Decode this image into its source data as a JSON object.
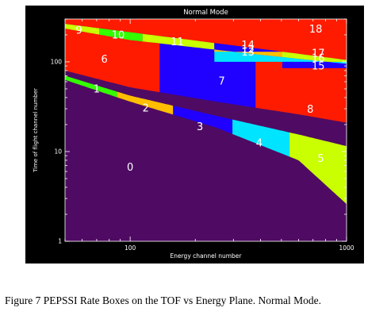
{
  "figure": {
    "caption": "Figure 7 PEPSSI Rate Boxes on the TOF vs Energy Plane.  Normal Mode."
  },
  "chart_data": {
    "type": "heatmap",
    "title": "Normal Mode",
    "xlabel": "Energy channel number",
    "ylabel": "Time of flight channel number",
    "x_scale": "log",
    "y_scale": "log",
    "xlim": [
      50,
      1000
    ],
    "ylim": [
      1,
      300
    ],
    "x_ticks": [
      {
        "value": 100,
        "label": "100"
      },
      {
        "value": 1000,
        "label": "1000"
      }
    ],
    "y_ticks": [
      {
        "value": 1,
        "label": "1"
      },
      {
        "value": 10,
        "label": "10"
      },
      {
        "value": 100,
        "label": "100"
      }
    ],
    "background_color": "#4f0b63",
    "boundaries": {
      "upper_band_bottom": [
        [
          50,
          265
        ],
        [
          1000,
          105
        ]
      ],
      "mid_band_top": [
        [
          50,
          235
        ],
        [
          100,
          175
        ],
        [
          400,
          120
        ],
        [
          1000,
          95
        ]
      ],
      "mid_band_bottom": [
        [
          50,
          80
        ],
        [
          100,
          52
        ],
        [
          250,
          36
        ],
        [
          600,
          26
        ],
        [
          1000,
          21
        ]
      ],
      "lower_band_top": [
        [
          50,
          70
        ],
        [
          100,
          42
        ],
        [
          250,
          25
        ],
        [
          600,
          15.5
        ],
        [
          1000,
          11.5
        ]
      ],
      "lower_band_bottom": [
        [
          50,
          63
        ],
        [
          100,
          36
        ],
        [
          250,
          18.5
        ],
        [
          600,
          8
        ],
        [
          1000,
          2.6
        ]
      ]
    },
    "boxes": [
      {
        "id": "0",
        "band": "background",
        "color": "#4f0b63",
        "label_at": [
          100,
          6.6
        ]
      },
      {
        "id": "1",
        "band": "lower",
        "x_range": [
          50,
          87
        ],
        "color": "#33ff00",
        "label_at": [
          70,
          49
        ]
      },
      {
        "id": "2",
        "band": "lower",
        "x_range": [
          87,
          158
        ],
        "color": "#ffbe00",
        "label_at": [
          118,
          30
        ]
      },
      {
        "id": "3",
        "band": "lower",
        "x_range": [
          158,
          297
        ],
        "color": "#2000ff",
        "label_at": [
          210,
          18.6
        ]
      },
      {
        "id": "4",
        "band": "lower",
        "x_range": [
          297,
          545
        ],
        "color": "#00e4ff",
        "label_at": [
          395,
          12.2
        ]
      },
      {
        "id": "5",
        "band": "lower",
        "x_range": [
          545,
          1000
        ],
        "color": "#c9ff00",
        "label_at": [
          760,
          8.2
        ]
      },
      {
        "id": "6",
        "band": "mid",
        "x_range": [
          50,
          137
        ],
        "color": "#ff1b00",
        "label_at": [
          76,
          105
        ]
      },
      {
        "id": "7",
        "band": "mid",
        "x_range": [
          137,
          380
        ],
        "color": "#2000ff",
        "label_at": [
          265,
          60
        ]
      },
      {
        "id": "8",
        "band": "mid",
        "x_range": [
          380,
          1000
        ],
        "color": "#ff1b00",
        "label_at": [
          680,
          29
        ]
      },
      {
        "id": "9",
        "band": "upper",
        "x_range": [
          50,
          72
        ],
        "color": "#c9ff00",
        "label_at": [
          58,
          220
        ]
      },
      {
        "id": "10",
        "band": "upper",
        "x_range": [
          72,
          114
        ],
        "color": "#33ff00",
        "label_at": [
          88,
          195
        ]
      },
      {
        "id": "11",
        "band": "upper",
        "x_range": [
          114,
          245
        ],
        "color": "#c9ff00",
        "label_at": [
          165,
          165
        ]
      },
      {
        "id": "12",
        "band": "upper_sub",
        "x_range": [
          245,
          505
        ],
        "y_range": [
          60,
          100
        ],
        "color": "#00e4ff",
        "label_at": [
          350,
          135
        ]
      },
      {
        "id": "13",
        "band": "upper_sub",
        "x_range": [
          245,
          505
        ],
        "y_range": [
          100,
          130
        ],
        "color": "#ffbe00",
        "label_at": [
          350,
          126
        ]
      },
      {
        "id": "14",
        "band": "upper_sub",
        "x_range": [
          245,
          505
        ],
        "y_range": [
          130,
          300
        ],
        "color": "#2000ff",
        "label_at": [
          350,
          152
        ]
      },
      {
        "id": "15",
        "band": "upper_sub",
        "x_range": [
          505,
          1000
        ],
        "y_range": [
          0,
          85
        ],
        "color": "#2000ff",
        "label_at": [
          740,
          88
        ]
      },
      {
        "id": "16",
        "band": "upper_sub",
        "x_range": [
          505,
          1000
        ],
        "y_range": [
          85,
          100
        ],
        "color": "#00e4ff",
        "label_at": [
          740,
          108
        ]
      },
      {
        "id": "17",
        "band": "upper_sub",
        "x_range": [
          505,
          1000
        ],
        "y_range": [
          100,
          300
        ],
        "color": "#c9ff00",
        "label_at": [
          740,
          123
        ]
      },
      {
        "id": "18",
        "band": "top",
        "color": "#ff1b00",
        "label_at": [
          720,
          228
        ]
      }
    ]
  }
}
